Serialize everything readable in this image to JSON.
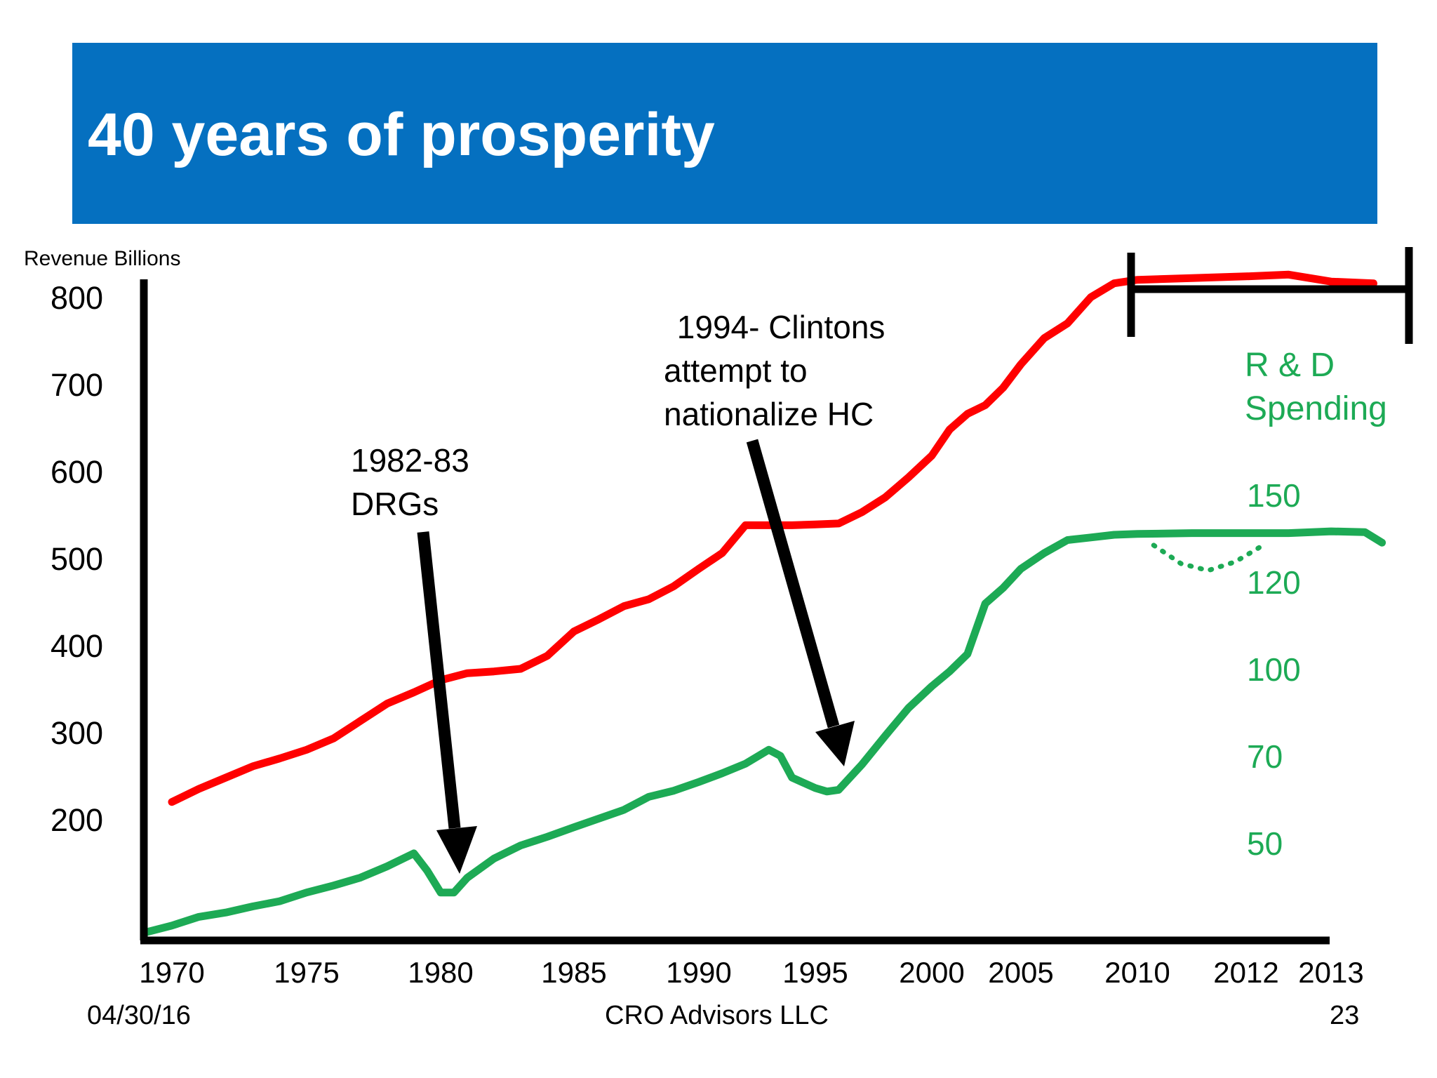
{
  "slide": {
    "title": "40 years of prosperity",
    "date": "04/30/16",
    "company": "CRO Advisors LLC",
    "page": "23"
  },
  "colors": {
    "banner": "#0570C0",
    "revenue": "#FF0000",
    "rd": "#1DAA55",
    "axis": "#000000"
  },
  "chart_data": {
    "type": "line",
    "ylabel": "Revenue Billions",
    "yticks_left": [
      "800",
      "700",
      "600",
      "500",
      "400",
      "300",
      "200"
    ],
    "yticks_left_values": [
      800,
      700,
      600,
      500,
      400,
      300,
      200
    ],
    "ylim_left": [
      60,
      840
    ],
    "yticks_right": [
      "150",
      "120",
      "100",
      "70",
      "50"
    ],
    "xticks": [
      "1970",
      "1975",
      "1980",
      "1985",
      "1990",
      "1995",
      "2000",
      "2005",
      "2010",
      "2012",
      "2013"
    ],
    "x_domain": [
      1969,
      2014
    ],
    "grid": false,
    "series": [
      {
        "name": "",
        "axis": "left",
        "color": "#FF0000",
        "x": [
          1970,
          1971,
          1972,
          1973,
          1974,
          1975,
          1976,
          1977,
          1978,
          1979,
          1980,
          1981,
          1982,
          1983,
          1984,
          1985,
          1986,
          1987,
          1988,
          1989,
          1990,
          1991,
          1992,
          1993,
          1994,
          1995,
          1996,
          1997,
          1998,
          1999,
          2000,
          2001,
          2002,
          2003,
          2004,
          2005,
          2006,
          2007,
          2008,
          2009,
          2010,
          2011,
          2012,
          2012.5,
          2013,
          2013.5
        ],
        "values": [
          222,
          237,
          250,
          263,
          272,
          282,
          295,
          315,
          335,
          348,
          362,
          370,
          372,
          375,
          390,
          418,
          432,
          447,
          455,
          470,
          490,
          508,
          540,
          540,
          540,
          541,
          542,
          555,
          572,
          595,
          620,
          650,
          668,
          678,
          698,
          725,
          755,
          772,
          802,
          818,
          822,
          824,
          826,
          828,
          820,
          818
        ]
      },
      {
        "name": "R & D Spending",
        "axis": "right",
        "color": "#1DAA55",
        "x": [
          1969,
          1970,
          1971,
          1972,
          1973,
          1974,
          1975,
          1976,
          1977,
          1978,
          1979,
          1979.5,
          1980,
          1980.5,
          1981,
          1982,
          1983,
          1984,
          1985,
          1986,
          1987,
          1988,
          1989,
          1990,
          1991,
          1992,
          1993,
          1993.5,
          1994,
          1995,
          1995.5,
          1996,
          1997,
          1998,
          1999,
          2000,
          2001,
          2002,
          2003,
          2004,
          2005,
          2006,
          2007,
          2008,
          2009,
          2010,
          2011,
          2012,
          2012.5,
          2013,
          2013.4,
          2013.6
        ],
        "values": [
          72,
          80,
          90,
          95,
          102,
          108,
          118,
          126,
          135,
          148,
          163,
          143,
          118,
          118,
          135,
          157,
          172,
          182,
          193,
          203,
          213,
          228,
          235,
          245,
          255,
          266,
          282,
          275,
          250,
          238,
          234,
          236,
          265,
          298,
          330,
          355,
          372,
          392,
          450,
          468,
          490,
          508,
          523,
          526,
          529,
          530,
          531,
          531,
          531,
          533,
          532,
          520
        ]
      },
      {
        "name": "",
        "axis": "right",
        "color": "#1DAA55",
        "style": "dotted",
        "x": [
          2010.3,
          2010.8,
          2011.3,
          2011.8,
          2012.2
        ],
        "values": [
          517,
          496,
          488,
          498,
          517
        ]
      }
    ],
    "annotations": [
      {
        "lines": [
          "1982-83",
          "DRGs"
        ]
      },
      {
        "lines": [
          " 1994- Clintons",
          "attempt to",
          "nationalize HC"
        ]
      },
      {
        "lines": [
          "R & D",
          "Spending"
        ]
      }
    ]
  }
}
